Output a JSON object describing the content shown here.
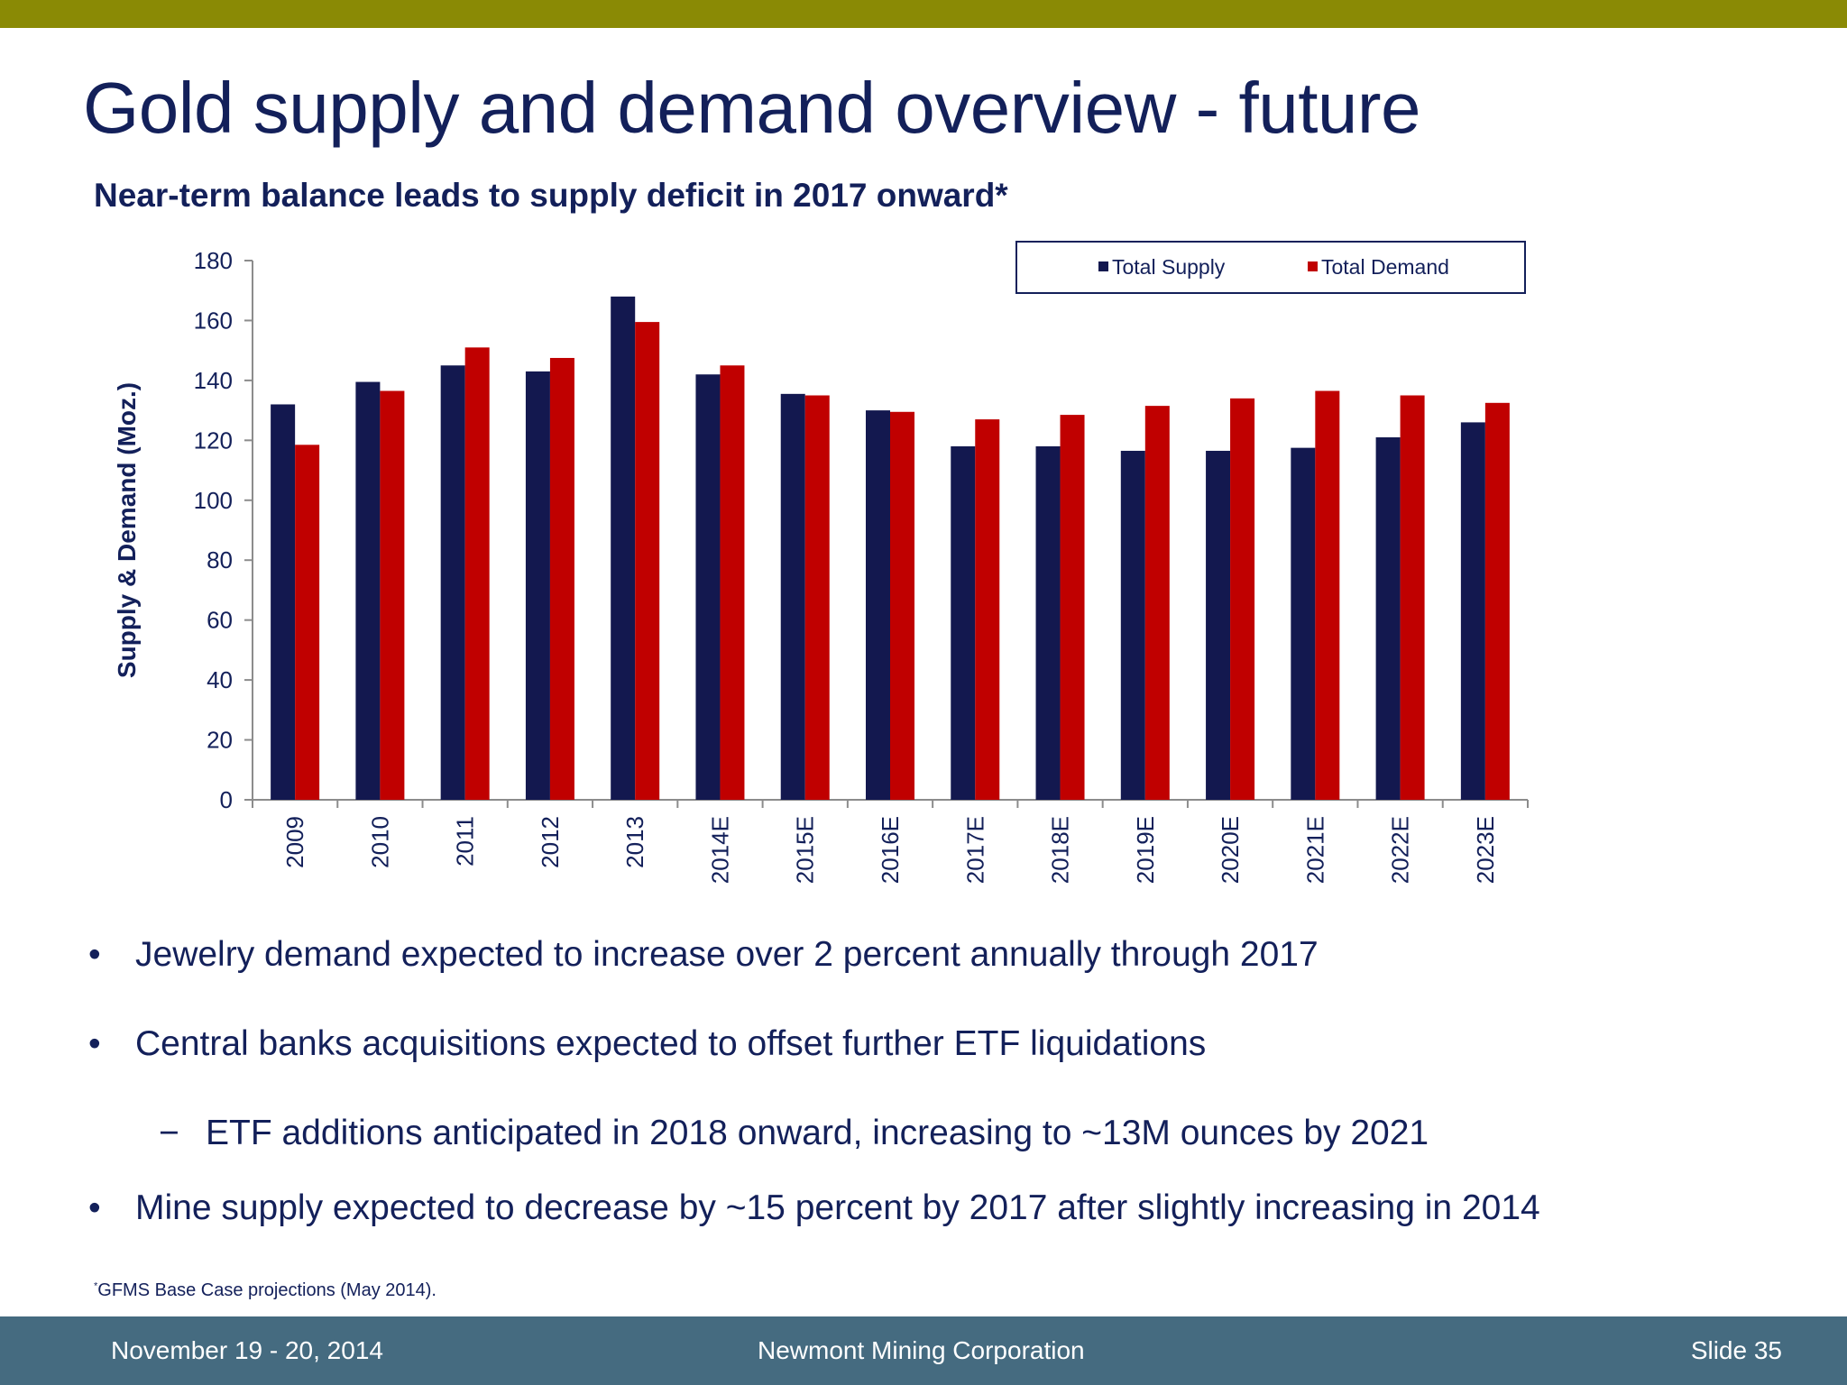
{
  "slide": {
    "title": "Gold supply and demand overview - future",
    "subtitle": "Near-term balance leads to supply deficit in 2017 onward*"
  },
  "chart_data": {
    "type": "bar",
    "ylabel": "Supply & Demand (Moz.)",
    "ylim": [
      0,
      180
    ],
    "yticks": [
      "0",
      "20",
      "40",
      "60",
      "80",
      "100",
      "120",
      "140",
      "160",
      "180"
    ],
    "categories": [
      "2009",
      "2010",
      "2011",
      "2012",
      "2013",
      "2014E",
      "2015E",
      "2016E",
      "2017E",
      "2018E",
      "2019E",
      "2020E",
      "2021E",
      "2022E",
      "2023E"
    ],
    "series": [
      {
        "name": "Total Supply",
        "color": "#13184f",
        "values": [
          132,
          139.5,
          145,
          143,
          168,
          142,
          135.5,
          130,
          118,
          118,
          116.5,
          116.5,
          117.5,
          121,
          126
        ]
      },
      {
        "name": "Total Demand",
        "color": "#c00000",
        "values": [
          118.5,
          136.5,
          151,
          147.5,
          159.5,
          145,
          135,
          129.5,
          127,
          128.5,
          131.5,
          134,
          136.5,
          135,
          132.5
        ]
      }
    ],
    "legend": "top-right",
    "grid": false
  },
  "bullets": [
    {
      "level": 1,
      "marker": "•",
      "text": "Jewelry demand expected to increase over 2 percent annually through 2017"
    },
    {
      "level": 1,
      "marker": "•",
      "text": "Central banks acquisitions expected to offset further ETF liquidations"
    },
    {
      "level": 2,
      "marker": "−",
      "text": "ETF additions anticipated in 2018 onward, increasing to ~13M ounces by 2021"
    },
    {
      "level": 1,
      "marker": "•",
      "text": "Mine supply expected to decrease by ~15 percent by 2017 after slightly increasing in 2014"
    }
  ],
  "footnote": {
    "marker": "*",
    "text": "GFMS Base Case projections (May 2014)."
  },
  "footer": {
    "date": "November 19 - 20, 2014",
    "company": "Newmont Mining Corporation",
    "slide_number": "Slide 35"
  }
}
